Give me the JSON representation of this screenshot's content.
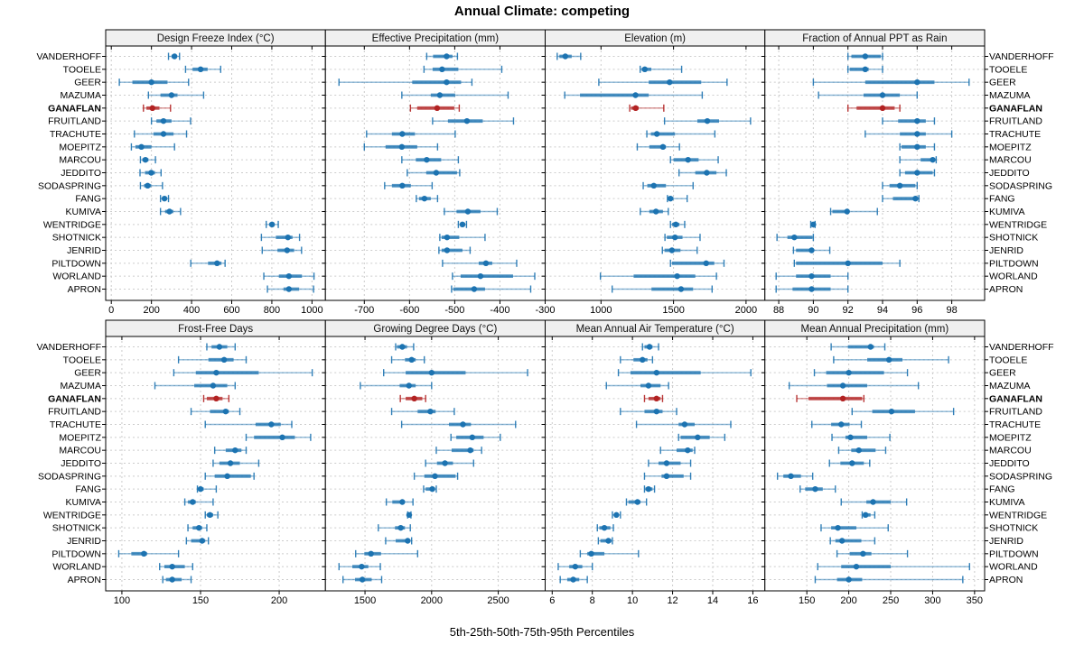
{
  "title": "Annual Climate: competing",
  "caption": "5th-25th-50th-75th-95th Percentiles",
  "colors": {
    "series": "#1c73b1",
    "highlight": "#b22222",
    "strip_bg": "#f0f0f0",
    "grid": "#cccccc",
    "border": "#000000"
  },
  "chart_data": {
    "type": "dotplot-percentile-trellis",
    "layout": "2 rows x 4 cols",
    "percentiles": [
      5,
      25,
      50,
      75,
      95
    ],
    "highlight_station": "GANAFLAN",
    "stations": [
      "VANDERHOFF",
      "TOOELE",
      "GEER",
      "MAZUMA",
      "GANAFLAN",
      "FRUITLAND",
      "TRACHUTE",
      "MOEPITZ",
      "MARCOU",
      "JEDDITO",
      "SODASPRING",
      "FANG",
      "KUMIVA",
      "WENTRIDGE",
      "SHOTNICK",
      "JENRID",
      "PILTDOWN",
      "WORLAND",
      "APRON"
    ],
    "panels": [
      {
        "title": "Design Freeze Index (°C)",
        "xlim": [
          -28,
          1067
        ],
        "ticks": [
          0,
          200,
          400,
          600,
          800,
          1000
        ],
        "data": [
          [
            285,
            300,
            315,
            325,
            340
          ],
          [
            370,
            405,
            445,
            480,
            545
          ],
          [
            40,
            105,
            200,
            280,
            385
          ],
          [
            185,
            245,
            300,
            330,
            460
          ],
          [
            160,
            175,
            205,
            240,
            295
          ],
          [
            200,
            225,
            260,
            300,
            395
          ],
          [
            115,
            210,
            260,
            310,
            375
          ],
          [
            100,
            120,
            150,
            200,
            315
          ],
          [
            145,
            155,
            170,
            185,
            220
          ],
          [
            143,
            168,
            199,
            218,
            248
          ],
          [
            145,
            163,
            181,
            199,
            255
          ],
          [
            245,
            255,
            265,
            275,
            285
          ],
          [
            245,
            268,
            290,
            309,
            345
          ],
          [
            772,
            787,
            801,
            813,
            832
          ],
          [
            748,
            820,
            880,
            903,
            938
          ],
          [
            752,
            828,
            876,
            911,
            948
          ],
          [
            396,
            482,
            527,
            549,
            567
          ],
          [
            760,
            835,
            885,
            950,
            1010
          ],
          [
            778,
            858,
            885,
            936,
            1008
          ]
        ]
      },
      {
        "title": "Effective Precipitation (mm)",
        "xlim": [
          -786,
          -300
        ],
        "ticks": [
          -700,
          -600,
          -500,
          -400,
          -300
        ],
        "data": [
          [
            -562,
            -548,
            -518,
            -505,
            -494
          ],
          [
            -568,
            -549,
            -528,
            -492,
            -396
          ],
          [
            -756,
            -594,
            -518,
            -486,
            -462
          ],
          [
            -617,
            -553,
            -533,
            -499,
            -382
          ],
          [
            -598,
            -583,
            -539,
            -501,
            -490
          ],
          [
            -549,
            -515,
            -473,
            -438,
            -370
          ],
          [
            -695,
            -639,
            -616,
            -588,
            -499
          ],
          [
            -700,
            -653,
            -617,
            -583,
            -538
          ],
          [
            -617,
            -586,
            -562,
            -530,
            -492
          ],
          [
            -605,
            -563,
            -541,
            -495,
            -489
          ],
          [
            -655,
            -639,
            -616,
            -597,
            -550
          ],
          [
            -585,
            -579,
            -567,
            -553,
            -538
          ],
          [
            -523,
            -496,
            -471,
            -443,
            -406
          ],
          [
            -492,
            -488,
            -483,
            -477,
            -474
          ],
          [
            -533,
            -529,
            -517,
            -490,
            -433
          ],
          [
            -535,
            -529,
            -517,
            -483,
            -466
          ],
          [
            -527,
            -447,
            -431,
            -417,
            -363
          ],
          [
            -505,
            -487,
            -443,
            -371,
            -323
          ],
          [
            -507,
            -503,
            -457,
            -433,
            -332
          ]
        ]
      },
      {
        "title": "Elevation (m)",
        "xlim": [
          615,
          2130
        ],
        "ticks": [
          1000,
          1500,
          2000
        ],
        "data": [
          [
            698,
            713,
            754,
            798,
            860
          ],
          [
            1270,
            1280,
            1302,
            1347,
            1556
          ],
          [
            985,
            1329,
            1473,
            1691,
            1869
          ],
          [
            750,
            855,
            1238,
            1329,
            1698
          ],
          [
            1198,
            1208,
            1239,
            1260,
            1433
          ],
          [
            1438,
            1664,
            1733,
            1814,
            2031
          ],
          [
            1316,
            1344,
            1385,
            1510,
            1785
          ],
          [
            1250,
            1333,
            1427,
            1448,
            1541
          ],
          [
            1479,
            1500,
            1600,
            1673,
            1808
          ],
          [
            1538,
            1650,
            1729,
            1796,
            1864
          ],
          [
            1291,
            1319,
            1364,
            1448,
            1635
          ],
          [
            1458,
            1460,
            1479,
            1500,
            1594
          ],
          [
            1271,
            1333,
            1379,
            1427,
            1464
          ],
          [
            1479,
            1490,
            1516,
            1541,
            1577
          ],
          [
            1441,
            1454,
            1510,
            1562,
            1683
          ],
          [
            1423,
            1438,
            1489,
            1548,
            1663
          ],
          [
            1479,
            1490,
            1725,
            1781,
            1848
          ],
          [
            996,
            1225,
            1525,
            1650,
            1796
          ],
          [
            1077,
            1348,
            1552,
            1635,
            1766
          ]
        ]
      },
      {
        "title": "Fraction of Annual PPT as Rain",
        "xlim": [
          87.2,
          99.9
        ],
        "ticks": [
          88,
          90,
          92,
          94,
          96,
          98
        ],
        "data": [
          [
            92.0,
            92.2,
            93.0,
            93.9,
            94.0
          ],
          [
            92.0,
            92.1,
            93.0,
            93.2,
            94.0
          ],
          [
            90.0,
            93.0,
            96.0,
            97.0,
            99.0
          ],
          [
            90.3,
            92.9,
            94.0,
            95.0,
            96.0
          ],
          [
            92.0,
            92.5,
            94.0,
            94.7,
            95.0
          ],
          [
            94.0,
            94.9,
            96.0,
            96.5,
            97.0
          ],
          [
            93.0,
            95.0,
            96.0,
            96.5,
            98.0
          ],
          [
            95.0,
            95.1,
            96.0,
            96.5,
            97.0
          ],
          [
            95.0,
            96.2,
            96.9,
            97.0,
            97.1
          ],
          [
            95.0,
            95.3,
            96.0,
            96.9,
            97.0
          ],
          [
            94.0,
            94.4,
            95.0,
            95.9,
            96.0
          ],
          [
            94.0,
            94.6,
            95.9,
            96.0,
            96.1
          ],
          [
            91.0,
            91.1,
            91.95,
            92.05,
            93.7
          ],
          [
            89.85,
            89.9,
            90.0,
            90.05,
            90.1
          ],
          [
            87.9,
            88.5,
            88.9,
            89.95,
            90.0
          ],
          [
            88.85,
            89.0,
            89.9,
            90.0,
            90.95
          ],
          [
            88.9,
            89.0,
            92.0,
            94.0,
            95.0
          ],
          [
            87.85,
            89.0,
            89.9,
            91.0,
            92.0
          ],
          [
            87.85,
            88.8,
            89.9,
            91.0,
            92.0
          ]
        ]
      },
      {
        "title": "Frost-Free Days",
        "xlim": [
          89.7,
          229.4
        ],
        "ticks": [
          100,
          150,
          200
        ],
        "data": [
          [
            154,
            157,
            162,
            167,
            172
          ],
          [
            136,
            155,
            165,
            171,
            179
          ],
          [
            133,
            147,
            160,
            187,
            221
          ],
          [
            121,
            146,
            158,
            167,
            172
          ],
          [
            152,
            154,
            160,
            164,
            168
          ],
          [
            144,
            156,
            166,
            168,
            175
          ],
          [
            153,
            185,
            195,
            201,
            208
          ],
          [
            179,
            184,
            202,
            210,
            220
          ],
          [
            159,
            166,
            172,
            176,
            179
          ],
          [
            158,
            162,
            169,
            175,
            187
          ],
          [
            153,
            159,
            167,
            182,
            184
          ],
          [
            148,
            149,
            150,
            152,
            160
          ],
          [
            140,
            142,
            145,
            147,
            158
          ],
          [
            153,
            154,
            156,
            158,
            161
          ],
          [
            142,
            145,
            149,
            151,
            154
          ],
          [
            141,
            144,
            151,
            153,
            155
          ],
          [
            98,
            106,
            114,
            116,
            136
          ],
          [
            124,
            127,
            132,
            140,
            145
          ],
          [
            126,
            128,
            132,
            138,
            144
          ]
        ]
      },
      {
        "title": "Growing Degree Days (°C)",
        "xlim": [
          1203,
          2852
        ],
        "ticks": [
          1500,
          2000,
          2500
        ],
        "data": [
          [
            1730,
            1740,
            1780,
            1815,
            1865
          ],
          [
            1700,
            1800,
            1850,
            1880,
            1945
          ],
          [
            1640,
            1805,
            2000,
            2255,
            2720
          ],
          [
            1465,
            1760,
            1830,
            1880,
            2000
          ],
          [
            1765,
            1805,
            1870,
            1930,
            1955
          ],
          [
            1700,
            1895,
            1990,
            2030,
            2170
          ],
          [
            1775,
            2130,
            2235,
            2295,
            2630
          ],
          [
            2145,
            2185,
            2305,
            2390,
            2515
          ],
          [
            2035,
            2150,
            2290,
            2315,
            2375
          ],
          [
            1955,
            2040,
            2100,
            2160,
            2315
          ],
          [
            1870,
            1945,
            2025,
            2180,
            2195
          ],
          [
            1940,
            1955,
            2005,
            2025,
            2035
          ],
          [
            1660,
            1705,
            1780,
            1795,
            1860
          ],
          [
            1820,
            1825,
            1831,
            1838,
            1845
          ],
          [
            1600,
            1725,
            1768,
            1800,
            1840
          ],
          [
            1655,
            1730,
            1820,
            1840,
            1850
          ],
          [
            1430,
            1495,
            1545,
            1620,
            1895
          ],
          [
            1305,
            1405,
            1475,
            1525,
            1615
          ],
          [
            1335,
            1425,
            1480,
            1550,
            1625
          ]
        ]
      },
      {
        "title": "Mean Annual Air Temperature (°C)",
        "xlim": [
          5.65,
          16.6
        ],
        "ticks": [
          6,
          8,
          10,
          12,
          14,
          16
        ],
        "data": [
          [
            10.5,
            10.6,
            10.85,
            11.0,
            11.3
          ],
          [
            9.4,
            10.05,
            10.5,
            10.75,
            11.0
          ],
          [
            9.3,
            9.9,
            11.2,
            13.4,
            15.9
          ],
          [
            8.7,
            10.4,
            10.8,
            11.4,
            11.8
          ],
          [
            10.6,
            10.8,
            11.2,
            11.4,
            11.5
          ],
          [
            9.4,
            10.6,
            11.2,
            11.5,
            12.2
          ],
          [
            10.2,
            12.3,
            12.6,
            13.1,
            14.9
          ],
          [
            12.3,
            12.4,
            13.25,
            13.85,
            14.6
          ],
          [
            11.4,
            12.2,
            12.75,
            13.0,
            13.1
          ],
          [
            10.8,
            11.3,
            11.7,
            12.4,
            12.9
          ],
          [
            10.6,
            11.45,
            11.7,
            12.55,
            12.9
          ],
          [
            10.6,
            10.65,
            10.8,
            11.0,
            11.1
          ],
          [
            9.7,
            9.8,
            10.25,
            10.4,
            10.7
          ],
          [
            9.0,
            9.1,
            9.2,
            9.3,
            9.4
          ],
          [
            8.25,
            8.35,
            8.6,
            8.9,
            9.05
          ],
          [
            8.3,
            8.4,
            8.8,
            8.95,
            9.0
          ],
          [
            7.4,
            7.75,
            7.95,
            8.6,
            10.3
          ],
          [
            6.3,
            6.85,
            7.15,
            7.5,
            8.0
          ],
          [
            6.4,
            6.75,
            7.05,
            7.35,
            7.75
          ]
        ]
      },
      {
        "title": "Mean Annual Precipitation (mm)",
        "xlim": [
          100,
          362
        ],
        "ticks": [
          150,
          200,
          250,
          300,
          350
        ],
        "data": [
          [
            179,
            199,
            226,
            230,
            243
          ],
          [
            182,
            222,
            248,
            264,
            319
          ],
          [
            159,
            173,
            200,
            242,
            270
          ],
          [
            129,
            174,
            193,
            222,
            283
          ],
          [
            138,
            152,
            193,
            216,
            218
          ],
          [
            204,
            228,
            251,
            279,
            325
          ],
          [
            156,
            179,
            191,
            201,
            215
          ],
          [
            180,
            196,
            202,
            222,
            249
          ],
          [
            188,
            203,
            212,
            232,
            244
          ],
          [
            177,
            190,
            204,
            218,
            225
          ],
          [
            115,
            122,
            131,
            143,
            157
          ],
          [
            142,
            148,
            160,
            169,
            184
          ],
          [
            191,
            221,
            229,
            250,
            269
          ],
          [
            216,
            217,
            220,
            226,
            231
          ],
          [
            167,
            179,
            187,
            209,
            247
          ],
          [
            178,
            184,
            192,
            215,
            231
          ],
          [
            186,
            201,
            217,
            227,
            270
          ],
          [
            163,
            191,
            209,
            250,
            344
          ],
          [
            160,
            186,
            200,
            216,
            336
          ]
        ]
      }
    ]
  }
}
